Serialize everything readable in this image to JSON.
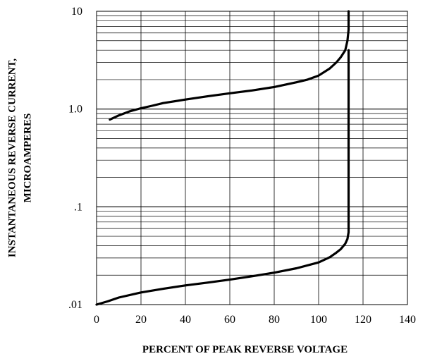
{
  "chart_data": {
    "type": "line",
    "title": "",
    "xlabel": "PERCENT OF PEAK REVERSE VOLTAGE",
    "ylabel_lines": [
      "INSTANTANEOUS REVERSE CURRENT,",
      "MICROAMPERES"
    ],
    "xlim": [
      0,
      140
    ],
    "ylim": [
      0.01,
      10
    ],
    "yscale": "log",
    "grid": true,
    "x_ticks": [
      0,
      20,
      40,
      60,
      80,
      100,
      120,
      140
    ],
    "x_tick_labels": [
      "0",
      "20",
      "40",
      "60",
      "80",
      "100",
      "120",
      "140"
    ],
    "y_tick_values": [
      0.01,
      0.1,
      1,
      10
    ],
    "y_tick_labels": [
      ".01",
      ".1",
      "1.0",
      "10"
    ],
    "series": [
      {
        "x": [
          6,
          10,
          15,
          20,
          25,
          30,
          40,
          50,
          60,
          70,
          80,
          90,
          95,
          100,
          105,
          108,
          110,
          112,
          113,
          113.5,
          113.5
        ],
        "y": [
          0.78,
          0.86,
          0.95,
          1.02,
          1.08,
          1.15,
          1.25,
          1.35,
          1.45,
          1.55,
          1.68,
          1.88,
          2.0,
          2.2,
          2.6,
          3.0,
          3.4,
          4.0,
          5.0,
          6.5,
          10
        ]
      },
      {
        "x": [
          0,
          5,
          10,
          20,
          30,
          40,
          50,
          60,
          70,
          80,
          90,
          100,
          105,
          108,
          110,
          112,
          113,
          113.5,
          113.5
        ],
        "y": [
          0.01,
          0.0108,
          0.0118,
          0.0133,
          0.0145,
          0.0157,
          0.0168,
          0.018,
          0.0195,
          0.0212,
          0.0235,
          0.027,
          0.0305,
          0.034,
          0.037,
          0.042,
          0.047,
          0.055,
          4.0
        ]
      }
    ]
  }
}
